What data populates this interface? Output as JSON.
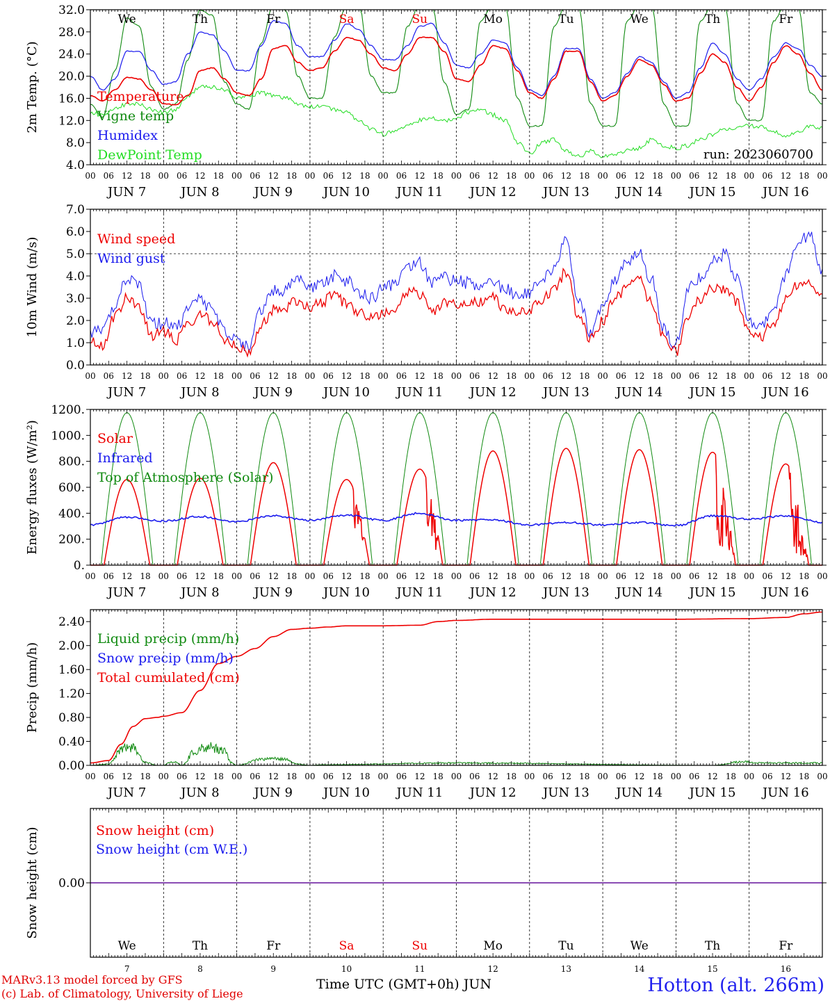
{
  "colors": {
    "red": "#ee0000",
    "blue": "#1a1aee",
    "dark_green": "#108a10",
    "light_green": "#22dd22",
    "purple": "#7a33aa",
    "weekend": "#ee0000"
  },
  "run_label": "run: 2023060700",
  "hour_ticks": [
    "00",
    "06",
    "12",
    "18"
  ],
  "hour_end": "00",
  "date_labels": [
    "JUN  7",
    "JUN  8",
    "JUN  9",
    "JUN 10",
    "JUN 11",
    "JUN 12",
    "JUN 13",
    "JUN 14",
    "JUN 15",
    "JUN 16"
  ],
  "weekdays": [
    "We",
    "Th",
    "Fr",
    "Sa",
    "Su",
    "Mo",
    "Tu",
    "We",
    "Th",
    "Fr"
  ],
  "weekend_days": [
    "Sa",
    "Su"
  ],
  "day_numbers": [
    "7",
    "8",
    "9",
    "10",
    "11",
    "12",
    "13",
    "14",
    "15",
    "16"
  ],
  "footer": {
    "credit_line1": "MARv3.13 model forced by GFS",
    "credit_line2": "(c) Lab. of Climatology, University of Liege",
    "xlabel": "Time UTC (GMT+0h) JUN",
    "station": "Hotton (alt. 266m)"
  },
  "chart_data": [
    {
      "type": "line",
      "ylabel": "2m Temp. (°C)",
      "ylim": [
        4,
        32
      ],
      "yticks": [
        "4.0",
        "8.0",
        "12.0",
        "16.0",
        "20.0",
        "24.0",
        "28.0",
        "32.0"
      ],
      "x_unit": "hours since JUN 7 00 UTC",
      "series": [
        {
          "name": "Temperature",
          "x": [
            0,
            4,
            8,
            12,
            16,
            20,
            24,
            28,
            32,
            36,
            40,
            44,
            48,
            52,
            56,
            60,
            64,
            68,
            72,
            76,
            80,
            84,
            88,
            92,
            96,
            100,
            104,
            108,
            112,
            116,
            120,
            124,
            128,
            132,
            136,
            140,
            144,
            148,
            152,
            156,
            160,
            164,
            168,
            172,
            176,
            180,
            184,
            188,
            192,
            196,
            200,
            204,
            208,
            212,
            216,
            220,
            224,
            228,
            232,
            236,
            240
          ],
          "y": [
            16.5,
            15.5,
            17.5,
            19.8,
            19.5,
            17.5,
            15,
            14.8,
            16.5,
            21,
            21.5,
            19.5,
            17,
            16.5,
            19.5,
            25,
            25.5,
            22.5,
            21,
            21.5,
            24.5,
            27,
            26.5,
            24,
            21.5,
            21,
            24,
            27,
            27,
            24.5,
            19.5,
            19,
            22,
            25.5,
            25,
            21,
            17,
            16,
            19.5,
            24.5,
            24.5,
            19,
            15.5,
            16.5,
            20,
            23,
            22,
            18.5,
            15.5,
            16,
            20.5,
            24,
            22.5,
            18,
            15.5,
            18,
            22.5,
            25.5,
            24,
            20.5,
            17.5
          ]
        },
        {
          "name": "Vigne temp",
          "x": [
            0,
            4,
            8,
            12,
            16,
            20,
            24,
            28,
            32,
            36,
            40,
            44,
            48,
            52,
            56,
            60,
            64,
            68,
            72,
            76,
            80,
            84,
            88,
            92,
            96,
            100,
            104,
            108,
            112,
            116,
            120,
            124,
            128,
            132,
            136,
            140,
            144,
            148,
            152,
            156,
            160,
            164,
            168,
            172,
            176,
            180,
            184,
            188,
            192,
            196,
            200,
            204,
            208,
            212,
            216,
            220,
            224,
            228,
            232,
            236,
            240
          ],
          "y": [
            15,
            12.5,
            21,
            30.5,
            29,
            18,
            14,
            15,
            23,
            32,
            31,
            19,
            15,
            14,
            26,
            33,
            32,
            20,
            16,
            16,
            27,
            33,
            33,
            20,
            17,
            17,
            29,
            33,
            33,
            19,
            13,
            14,
            30,
            33,
            33,
            16,
            11,
            11,
            29,
            33,
            33,
            15,
            11,
            11,
            30,
            33,
            33,
            15,
            11,
            11,
            30,
            33,
            33,
            15,
            12,
            12,
            30,
            33,
            33,
            17,
            15
          ]
        },
        {
          "name": "Humidex",
          "x": [
            0,
            4,
            8,
            12,
            16,
            20,
            24,
            28,
            32,
            36,
            40,
            44,
            48,
            52,
            56,
            60,
            64,
            68,
            72,
            76,
            80,
            84,
            88,
            92,
            96,
            100,
            104,
            108,
            112,
            116,
            120,
            124,
            128,
            132,
            136,
            140,
            144,
            148,
            152,
            156,
            160,
            164,
            168,
            172,
            176,
            180,
            184,
            188,
            192,
            196,
            200,
            204,
            208,
            212,
            216,
            220,
            224,
            228,
            232,
            236,
            240
          ],
          "y": [
            20,
            17.5,
            19.5,
            24.5,
            24.5,
            21,
            18.5,
            19,
            24,
            28,
            27.5,
            24.5,
            21,
            21,
            25.5,
            30,
            29.5,
            25.5,
            23.5,
            23.5,
            26.5,
            29.5,
            28.5,
            25.5,
            23,
            23,
            25.5,
            29,
            29.5,
            26,
            22,
            21.5,
            24,
            26.5,
            26,
            21.5,
            17.5,
            16.5,
            20,
            25,
            25,
            19.5,
            16,
            17,
            20.5,
            23.5,
            22.5,
            19,
            16,
            17,
            21.5,
            26,
            24,
            19.5,
            17.5,
            19.5,
            23.5,
            26,
            25,
            22,
            20
          ]
        },
        {
          "name": "DewPoint Temp",
          "x": [
            0,
            4,
            8,
            12,
            16,
            20,
            24,
            28,
            32,
            36,
            40,
            44,
            48,
            52,
            56,
            60,
            64,
            68,
            72,
            76,
            80,
            84,
            88,
            92,
            96,
            100,
            104,
            108,
            112,
            116,
            120,
            124,
            128,
            132,
            136,
            140,
            144,
            148,
            152,
            156,
            160,
            164,
            168,
            172,
            176,
            180,
            184,
            188,
            192,
            196,
            200,
            204,
            208,
            212,
            216,
            220,
            224,
            228,
            232,
            236,
            240
          ],
          "y": [
            13.5,
            13,
            14,
            15,
            15,
            14,
            13.5,
            14,
            16.5,
            18,
            18,
            17.5,
            16,
            16.5,
            17,
            16.5,
            16,
            15,
            14.5,
            14.5,
            14,
            13.5,
            12,
            10.5,
            9.5,
            10,
            11,
            12,
            12.5,
            12,
            12.5,
            13.5,
            14,
            13,
            12,
            8,
            6,
            8,
            8.5,
            6.5,
            5.5,
            6.5,
            5.5,
            6,
            6.5,
            7,
            8.5,
            7.5,
            7,
            7.5,
            8.5,
            9.5,
            10.5,
            10.5,
            11,
            11,
            10,
            9,
            10,
            11,
            10.5
          ]
        }
      ],
      "legend": [
        "Temperature",
        "Vigne temp",
        "Humidex",
        "DewPoint Temp"
      ],
      "legend_placement": "top-left"
    },
    {
      "type": "line",
      "ylabel": "10m Wind (m/s)",
      "ylim": [
        0,
        7
      ],
      "yticks": [
        "0.0",
        "1.0",
        "2.0",
        "3.0",
        "4.0",
        "5.0",
        "6.0",
        "7.0"
      ],
      "reference_line": 5.0,
      "x_unit": "hours since JUN 7 00 UTC",
      "series": [
        {
          "name": "Wind speed",
          "x": [
            0,
            4,
            8,
            12,
            16,
            20,
            24,
            28,
            32,
            36,
            40,
            44,
            48,
            52,
            56,
            60,
            64,
            68,
            72,
            76,
            80,
            84,
            88,
            92,
            96,
            100,
            104,
            108,
            112,
            116,
            120,
            124,
            128,
            132,
            136,
            140,
            144,
            148,
            152,
            156,
            160,
            164,
            168,
            172,
            176,
            180,
            184,
            188,
            192,
            196,
            200,
            204,
            208,
            212,
            216,
            220,
            224,
            228,
            232,
            236,
            240
          ],
          "y": [
            1.0,
            0.9,
            2.2,
            3.0,
            2.6,
            1.3,
            1.5,
            1.1,
            1.8,
            2.3,
            1.9,
            1.2,
            0.8,
            0.5,
            1.8,
            2.5,
            2.6,
            2.9,
            2.6,
            2.8,
            3.2,
            2.7,
            2.3,
            2.2,
            2.3,
            2.6,
            3.3,
            3.2,
            2.4,
            2.8,
            2.7,
            2.8,
            2.8,
            3.0,
            2.5,
            2.3,
            2.5,
            2.9,
            3.4,
            4.2,
            2.2,
            1.2,
            2.0,
            3.0,
            3.5,
            3.8,
            2.8,
            1.2,
            0.6,
            2.1,
            3.0,
            3.5,
            3.4,
            2.8,
            1.5,
            1.3,
            1.9,
            2.9,
            3.6,
            3.6,
            3.0
          ]
        },
        {
          "name": "Wind gust",
          "x": [
            0,
            4,
            8,
            12,
            16,
            20,
            24,
            28,
            32,
            36,
            40,
            44,
            48,
            52,
            56,
            60,
            64,
            68,
            72,
            76,
            80,
            84,
            88,
            92,
            96,
            100,
            104,
            108,
            112,
            116,
            120,
            124,
            128,
            132,
            136,
            140,
            144,
            148,
            152,
            156,
            160,
            164,
            168,
            172,
            176,
            180,
            184,
            188,
            192,
            196,
            200,
            204,
            208,
            212,
            216,
            220,
            224,
            228,
            232,
            236,
            240
          ],
          "y": [
            1.4,
            1.5,
            2.7,
            3.8,
            3.6,
            1.8,
            1.9,
            1.6,
            2.5,
            2.9,
            2.5,
            1.6,
            1.1,
            0.8,
            2.5,
            3.3,
            3.4,
            3.8,
            3.4,
            3.6,
            4.0,
            3.8,
            3.3,
            3.0,
            3.4,
            3.6,
            4.3,
            4.6,
            3.7,
            3.9,
            3.8,
            3.7,
            3.6,
            3.8,
            3.4,
            3.2,
            3.3,
            3.7,
            4.4,
            5.6,
            3.0,
            1.5,
            2.7,
            3.9,
            4.6,
            5.0,
            3.8,
            1.6,
            0.9,
            3.4,
            3.9,
            4.6,
            5.0,
            3.9,
            2.0,
            1.7,
            2.6,
            4.0,
            5.5,
            5.8,
            4.2
          ]
        }
      ],
      "legend": [
        "Wind speed",
        "Wind gust"
      ],
      "legend_placement": "top-left"
    },
    {
      "type": "line",
      "ylabel": "Energy fluxes (W/m²)",
      "ylim": [
        0,
        1200
      ],
      "yticks": [
        "0.",
        "200.",
        "400.",
        "600.",
        "800.",
        "1000.",
        "1200."
      ],
      "x_unit": "hours since JUN 7 00 UTC",
      "daily_peaks": {
        "solar": [
          660,
          670,
          790,
          660,
          740,
          880,
          900,
          890,
          870,
          780
        ],
        "top_of_atmosphere": [
          1175,
          1175,
          1175,
          1175,
          1175,
          1175,
          1175,
          1175,
          1175,
          1175
        ]
      },
      "series": [
        {
          "name": "Infrared",
          "x": [
            0,
            12,
            24,
            36,
            48,
            60,
            72,
            84,
            96,
            108,
            120,
            132,
            144,
            156,
            168,
            180,
            192,
            204,
            216,
            228,
            240
          ],
          "y": [
            310,
            370,
            340,
            375,
            335,
            380,
            345,
            385,
            345,
            400,
            345,
            350,
            310,
            330,
            310,
            330,
            305,
            380,
            355,
            380,
            330
          ]
        }
      ],
      "legend": [
        "Solar",
        "Infrared",
        "Top of Atmosphere (Solar)"
      ],
      "legend_placement": "top-left"
    },
    {
      "type": "line",
      "ylabel": "Precip (mm/h)",
      "ylim": [
        0,
        2.6
      ],
      "yticks": [
        "0.00",
        "0.40",
        "0.80",
        "1.20",
        "1.60",
        "2.00",
        "2.40"
      ],
      "x_unit": "hours since JUN 7 00 UTC",
      "series": [
        {
          "name": "Total cumulated (cm)",
          "x": [
            0,
            6,
            10,
            14,
            18,
            22,
            24,
            30,
            36,
            42,
            48,
            54,
            60,
            66,
            72,
            78,
            84,
            96,
            108,
            114,
            120,
            132,
            144,
            168,
            192,
            216,
            228,
            234,
            240
          ],
          "y": [
            0.04,
            0.08,
            0.35,
            0.65,
            0.78,
            0.8,
            0.82,
            0.88,
            1.25,
            1.7,
            1.82,
            1.95,
            2.15,
            2.27,
            2.29,
            2.31,
            2.33,
            2.33,
            2.34,
            2.4,
            2.42,
            2.44,
            2.44,
            2.44,
            2.44,
            2.45,
            2.47,
            2.53,
            2.56
          ]
        },
        {
          "name": "Liquid precip (mm/h)",
          "x": [
            0,
            6,
            10,
            12,
            14,
            18,
            22,
            24,
            26,
            28,
            30,
            34,
            38,
            40,
            44,
            46,
            48,
            56,
            60,
            64,
            68,
            72,
            76,
            120,
            204,
            214,
            220
          ],
          "y": [
            0,
            0.02,
            0.25,
            0.32,
            0.3,
            0.05,
            0,
            0,
            0.05,
            0.05,
            0,
            0.22,
            0.3,
            0.3,
            0.25,
            0.05,
            0,
            0.1,
            0.12,
            0.1,
            0.02,
            0,
            0.01,
            0.04,
            0.0,
            0.06,
            0.04
          ]
        },
        {
          "name": "Snow precip (mm/h)",
          "x": [
            0,
            240
          ],
          "y": [
            0,
            0
          ]
        }
      ],
      "legend": [
        "Liquid precip (mm/h)",
        "Snow precip (mm/h)",
        "Total cumulated (cm)"
      ],
      "legend_placement": "top-left"
    },
    {
      "type": "line",
      "ylabel": "Snow height (cm)",
      "yticks": [
        "0.00"
      ],
      "x_unit": "hours since JUN 7 00 UTC",
      "series": [
        {
          "name": "Snow height (cm)",
          "x": [
            0,
            240
          ],
          "y": [
            0,
            0
          ]
        },
        {
          "name": "Snow height (cm W.E.)",
          "x": [
            0,
            240
          ],
          "y": [
            0,
            0
          ]
        }
      ],
      "legend": [
        "Snow height (cm)",
        "Snow height (cm W.E.)"
      ],
      "legend_placement": "top-left"
    }
  ]
}
